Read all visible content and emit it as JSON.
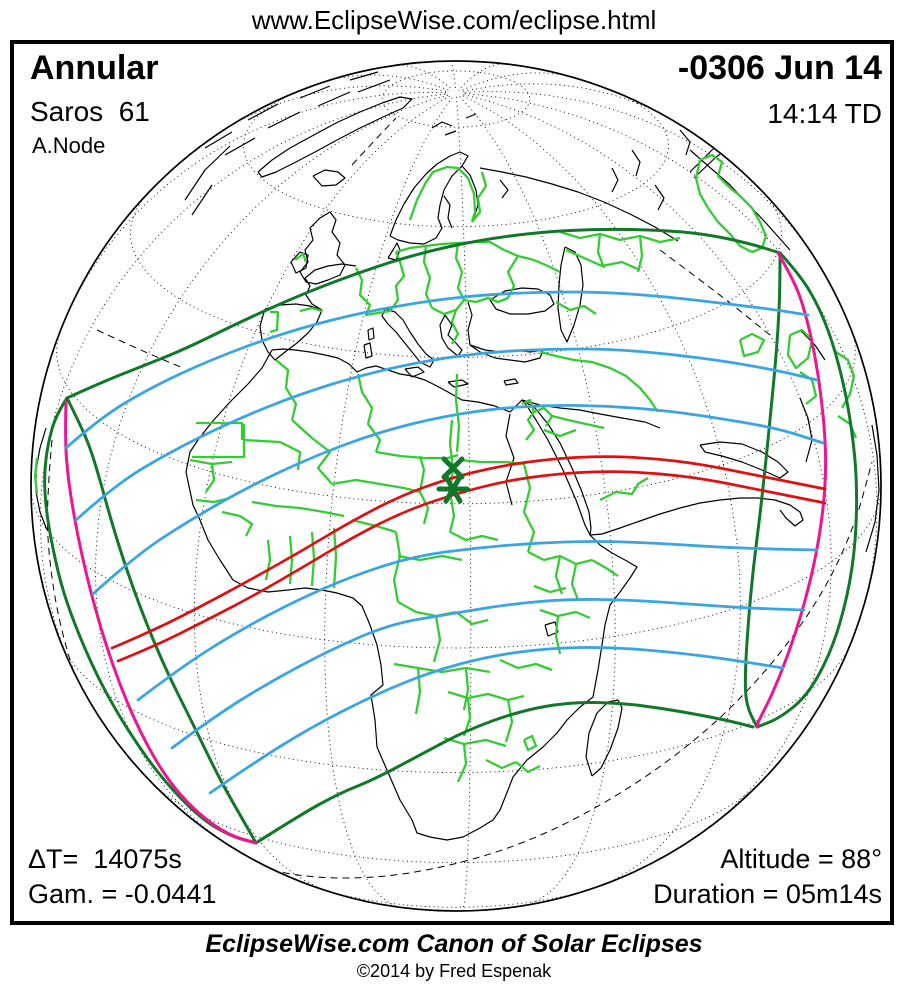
{
  "header": {
    "url": "www.EclipseWise.com/eclipse.html"
  },
  "plate": {
    "eclipse_type": "Annular",
    "saros": "Saros  61",
    "node": "A.Node",
    "date": "-0306 Jun 14",
    "time": "14:14 TD",
    "delta_t": "ΔT=  14075s",
    "gamma": "Gam. = -0.0441",
    "altitude": "Altitude = 88°",
    "duration": "Duration = 05m14s"
  },
  "footer": {
    "title": "EclipseWise.com Canon of Solar Eclipses",
    "copyright": "©2014 by Fred Espenak"
  },
  "map": {
    "colors": {
      "coastline": "#000000",
      "country_border": "#33CC33",
      "penumbra_limit": "#107828",
      "sunrise_sunset_curve": "#EE1492",
      "annular_path": "#DD1111",
      "contour": "#3AA5E2",
      "graticule": "#000000",
      "terminator": "#000000",
      "marker": "#107828"
    },
    "legend": {
      "greatest_eclipse_markers": "green X and star at greatest eclipse point",
      "projection": "orthographic globe centered on Africa"
    }
  }
}
